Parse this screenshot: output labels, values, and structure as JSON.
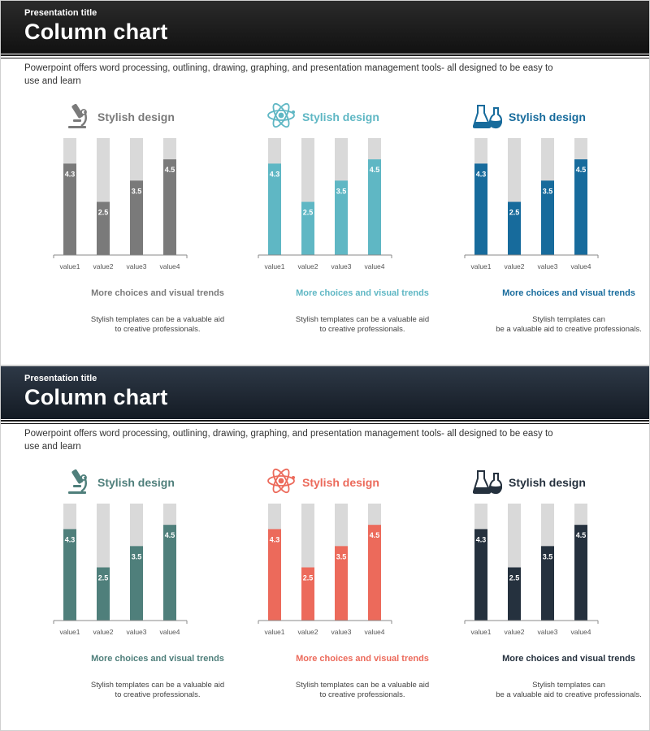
{
  "slides": [
    {
      "pre_title": "Presentation title",
      "title": "Column chart",
      "intro": "Powerpoint offers word processing, outlining, drawing, graphing, and presentation management tools- all designed to be easy to use and learn",
      "panels": [
        {
          "icon": "microscope-icon",
          "heading": "Stylish design",
          "accent": "#7a7a7a",
          "caption_title": "More choices and visual trends",
          "caption_body": [
            "Stylish templates can  be a valuable aid",
            "to creative professionals."
          ]
        },
        {
          "icon": "atom-icon",
          "heading": "Stylish design",
          "accent": "#5fb7c4",
          "caption_title": "More choices and visual trends",
          "caption_body": [
            "Stylish templates can  be a valuable aid",
            "to creative professionals."
          ]
        },
        {
          "icon": "flasks-icon",
          "heading": "Stylish design",
          "accent": "#176b9c",
          "caption_title": "More choices and visual trends",
          "caption_body": [
            "Stylish templates can",
            "be a valuable aid to creative  professionals."
          ]
        }
      ]
    },
    {
      "pre_title": "Presentation title",
      "title": "Column chart",
      "intro": "Powerpoint offers word processing, outlining, drawing, graphing, and presentation management tools- all designed to be easy to use and learn",
      "panels": [
        {
          "icon": "microscope-icon",
          "heading": "Stylish design",
          "accent": "#4f7f7b",
          "caption_title": "More choices and visual trends",
          "caption_body": [
            "Stylish templates can  be a valuable aid",
            "to creative professionals."
          ]
        },
        {
          "icon": "atom-icon",
          "heading": "Stylish design",
          "accent": "#ec6a5b",
          "caption_title": "More choices and visual trends",
          "caption_body": [
            "Stylish templates can  be a valuable aid",
            "to creative professionals."
          ]
        },
        {
          "icon": "flasks-icon",
          "heading": "Stylish design",
          "accent": "#25313e",
          "caption_title": "More choices and visual trends",
          "caption_body": [
            "Stylish templates can",
            "be a valuable aid to creative  professionals."
          ]
        }
      ]
    }
  ],
  "track_color": "#d9d9d9",
  "chart_data": [
    {
      "type": "bar",
      "categories": [
        "value1",
        "value2",
        "value3",
        "value4"
      ],
      "values": [
        4.3,
        2.5,
        3.5,
        4.5
      ],
      "data_labels": [
        "4.3",
        "2.5",
        "3.5",
        "4.5"
      ],
      "color": "#7a7a7a",
      "grid": false
    },
    {
      "type": "bar",
      "categories": [
        "value1",
        "value2",
        "value3",
        "value4"
      ],
      "values": [
        4.3,
        2.5,
        3.5,
        4.5
      ],
      "data_labels": [
        "4.3",
        "2.5",
        "3.5",
        "4.5"
      ],
      "color": "#5fb7c4",
      "grid": false
    },
    {
      "type": "bar",
      "categories": [
        "value1",
        "value2",
        "value3",
        "value4"
      ],
      "values": [
        4.3,
        2.5,
        3.5,
        4.5
      ],
      "data_labels": [
        "4.3",
        "2.5",
        "3.5",
        "4.5"
      ],
      "color": "#176b9c",
      "grid": false
    },
    {
      "type": "bar",
      "categories": [
        "value1",
        "value2",
        "value3",
        "value4"
      ],
      "values": [
        4.3,
        2.5,
        3.5,
        4.5
      ],
      "data_labels": [
        "4.3",
        "2.5",
        "3.5",
        "4.5"
      ],
      "color": "#4f7f7b",
      "grid": false
    },
    {
      "type": "bar",
      "categories": [
        "value1",
        "value2",
        "value3",
        "value4"
      ],
      "values": [
        4.3,
        2.5,
        3.5,
        4.5
      ],
      "data_labels": [
        "4.3",
        "2.5",
        "3.5",
        "4.5"
      ],
      "color": "#ec6a5b",
      "grid": false
    },
    {
      "type": "bar",
      "categories": [
        "value1",
        "value2",
        "value3",
        "value4"
      ],
      "values": [
        4.3,
        2.5,
        3.5,
        4.5
      ],
      "data_labels": [
        "4.3",
        "2.5",
        "3.5",
        "4.5"
      ],
      "color": "#25313e",
      "grid": false
    }
  ]
}
